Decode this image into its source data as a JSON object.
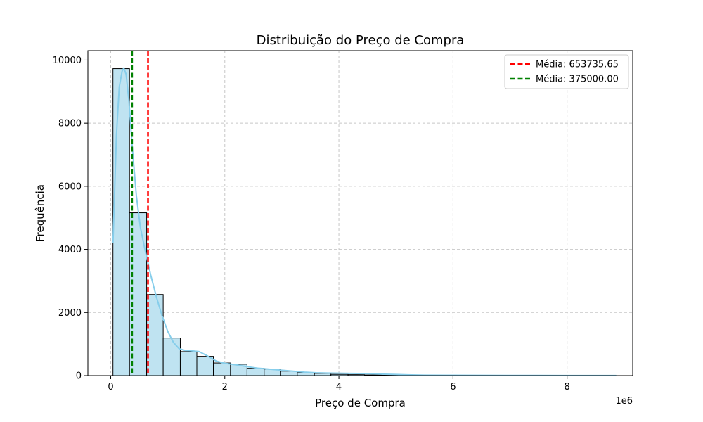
{
  "chart_data": {
    "type": "bar",
    "title": "Distribuição do Preço de Compra",
    "xlabel": "Preço de Compra",
    "ylabel": "Frequência",
    "x_offset_label": "1e6",
    "xlim": [
      -0.4,
      9.15
    ],
    "ylim": [
      0,
      10300
    ],
    "x_ticks": [
      0,
      2,
      4,
      6,
      8
    ],
    "y_ticks": [
      0,
      2000,
      4000,
      6000,
      8000,
      10000
    ],
    "grid": true,
    "legend_position": "top-right",
    "bin_edges": [
      0.04,
      0.33,
      0.63,
      0.92,
      1.22,
      1.51,
      1.8,
      2.1,
      2.39,
      2.69,
      2.98,
      3.27,
      3.57,
      3.86,
      4.16,
      4.45,
      4.74,
      5.04,
      5.33,
      5.63,
      5.92,
      6.21,
      6.51,
      6.8,
      7.1,
      7.39,
      7.68,
      7.98,
      8.27,
      8.57,
      8.86
    ],
    "counts": [
      9730,
      5160,
      2570,
      1190,
      760,
      610,
      400,
      360,
      230,
      200,
      140,
      90,
      70,
      40,
      30,
      20,
      15,
      10,
      8,
      5,
      4,
      3,
      2,
      2,
      1,
      1,
      1,
      1,
      1,
      1
    ],
    "kde": {
      "x": [
        0.04,
        0.1,
        0.15,
        0.2,
        0.23,
        0.27,
        0.32,
        0.38,
        0.45,
        0.52,
        0.6,
        0.7,
        0.8,
        0.9,
        1.0,
        1.1,
        1.2,
        1.3,
        1.4,
        1.55,
        1.7,
        1.85,
        2.0,
        2.2,
        2.4,
        2.6,
        2.8,
        3.0,
        3.2,
        3.4,
        3.6,
        3.8,
        4.0,
        4.2,
        4.4,
        4.6,
        4.8,
        5.0,
        5.2,
        5.5,
        6.0,
        6.5,
        7.0,
        7.5,
        8.0,
        8.5,
        8.86
      ],
      "y": [
        4200,
        7600,
        9150,
        9650,
        9750,
        9550,
        8700,
        7200,
        5700,
        4700,
        4000,
        3200,
        2500,
        1900,
        1400,
        1050,
        850,
        800,
        790,
        760,
        620,
        460,
        390,
        340,
        280,
        230,
        200,
        170,
        140,
        110,
        90,
        80,
        75,
        70,
        65,
        55,
        45,
        35,
        25,
        15,
        10,
        8,
        6,
        5,
        4,
        3,
        2
      ]
    },
    "colors": {
      "bar_fill": "#bfe3f1",
      "bar_edge": "#000000",
      "kde_line": "#87ceeb",
      "grid": "#c7c7c7",
      "mean_line": "#ff0000",
      "median_line": "#008000"
    },
    "reference_lines": [
      {
        "name": "Média: 653735.65",
        "x": 0.65373565,
        "color": "#ff0000"
      },
      {
        "name": "Média: 375000.00",
        "x": 0.375,
        "color": "#008000"
      }
    ]
  }
}
